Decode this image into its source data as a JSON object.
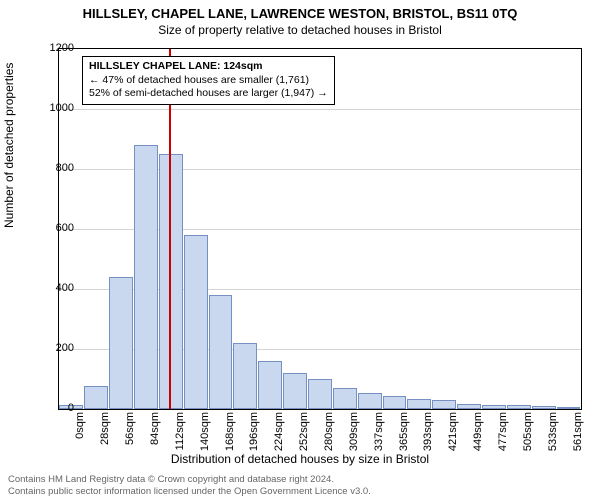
{
  "title": "HILLSLEY, CHAPEL LANE, LAWRENCE WESTON, BRISTOL, BS11 0TQ",
  "subtitle": "Size of property relative to detached houses in Bristol",
  "chart": {
    "type": "histogram",
    "ylabel": "Number of detached properties",
    "xlabel": "Distribution of detached houses by size in Bristol",
    "ylim": [
      0,
      1200
    ],
    "yticks": [
      0,
      200,
      400,
      600,
      800,
      1000,
      1200
    ],
    "xticks": [
      "0sqm",
      "28sqm",
      "56sqm",
      "84sqm",
      "112sqm",
      "140sqm",
      "168sqm",
      "196sqm",
      "224sqm",
      "252sqm",
      "280sqm",
      "309sqm",
      "337sqm",
      "365sqm",
      "393sqm",
      "421sqm",
      "449sqm",
      "477sqm",
      "505sqm",
      "533sqm",
      "561sqm"
    ],
    "bars": [
      12,
      78,
      440,
      880,
      850,
      580,
      380,
      220,
      160,
      120,
      100,
      70,
      55,
      45,
      35,
      30,
      18,
      14,
      12,
      10,
      8
    ],
    "bar_fill": "#c9d7ef",
    "bar_stroke": "#7690c2",
    "grid_color": "#888888",
    "background": "#ffffff",
    "marker_x_index": 4.43,
    "marker_color": "#cc0000",
    "label_fontsize": 12,
    "tick_fontsize": 11,
    "bar_width_ratio": 0.96
  },
  "annotation": {
    "title": "HILLSLEY CHAPEL LANE: 124sqm",
    "line1": "← 47% of detached houses are smaller (1,761)",
    "line2": "52% of semi-detached houses are larger (1,947) →"
  },
  "footer": {
    "line1": "Contains HM Land Registry data © Crown copyright and database right 2024.",
    "line2": "Contains public sector information licensed under the Open Government Licence v3.0."
  }
}
